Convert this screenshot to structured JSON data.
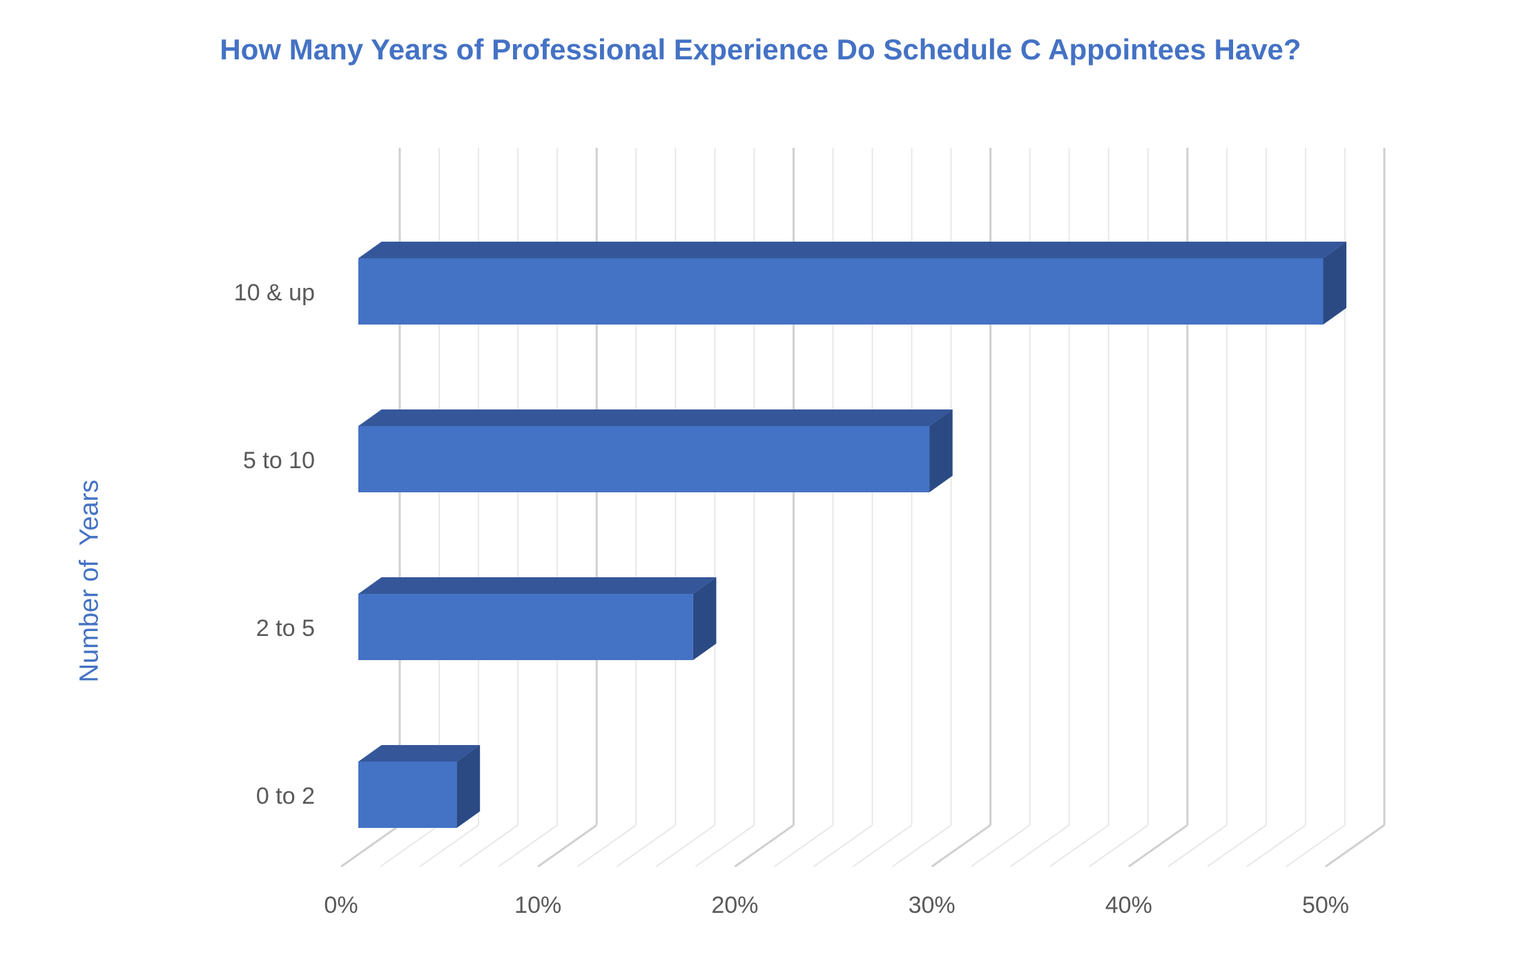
{
  "chart_data": {
    "type": "bar",
    "orientation": "horizontal",
    "style": "3d-clustered",
    "title": "How Many Years of Professional Experience Do Schedule C Appointees Have?",
    "xlabel": "",
    "ylabel": "Number of  Years",
    "categories": [
      "0 to 2",
      "2 to 5",
      "5 to 10",
      "10 & up"
    ],
    "values": [
      5,
      17,
      29,
      49
    ],
    "xlim": [
      0,
      50
    ],
    "x_ticks": [
      "0%",
      "10%",
      "20%",
      "30%",
      "40%",
      "50%"
    ],
    "grid": true,
    "legend": "none",
    "colors": {
      "bar_front": "#4472c4",
      "bar_top": "#35579a",
      "bar_side": "#2b4a84",
      "title": "#4472c4",
      "axis_title": "#4472c4",
      "tick_label": "#595959",
      "grid_major": "#d0d0d0",
      "grid_minor": "#e8e8e8"
    }
  }
}
